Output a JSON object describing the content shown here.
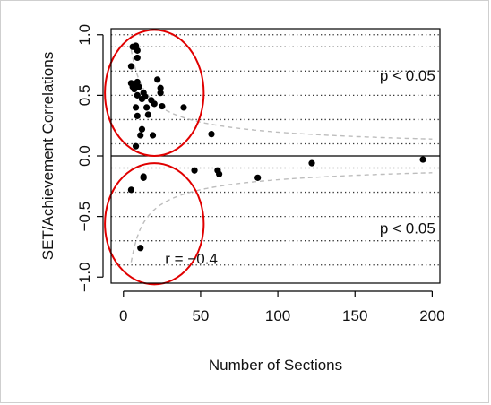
{
  "chart_data": {
    "type": "scatter",
    "xlabel": "Number of Sections",
    "ylabel": "SET/Achievement Correlations",
    "xlim": [
      -8,
      205
    ],
    "ylim": [
      -1.05,
      1.05
    ],
    "x_ticks": [
      0,
      50,
      100,
      150,
      200
    ],
    "y_ticks": [
      -1.0,
      -0.5,
      0.0,
      0.5,
      1.0
    ],
    "x_tick_labels": [
      "0",
      "50",
      "100",
      "150",
      "200"
    ],
    "y_tick_labels": [
      "−1.0",
      "−0.5",
      "0.0",
      "0.5",
      "1.0"
    ],
    "dotted_gridlines_y": [
      1.0,
      0.9,
      0.7,
      0.5,
      0.3,
      0.1,
      -0.1,
      -0.3,
      -0.5,
      -0.7,
      -0.9
    ],
    "zero_line": true,
    "significance_curve": "± critical r at p < 0.05",
    "points": [
      {
        "x": 6,
        "y": 0.9
      },
      {
        "x": 8,
        "y": 0.91
      },
      {
        "x": 9,
        "y": 0.87
      },
      {
        "x": 9,
        "y": 0.81
      },
      {
        "x": 5,
        "y": 0.74
      },
      {
        "x": 5,
        "y": 0.6
      },
      {
        "x": 6,
        "y": 0.57
      },
      {
        "x": 7,
        "y": 0.55
      },
      {
        "x": 8,
        "y": 0.58
      },
      {
        "x": 9,
        "y": 0.61
      },
      {
        "x": 10,
        "y": 0.57
      },
      {
        "x": 9,
        "y": 0.5
      },
      {
        "x": 13,
        "y": 0.52
      },
      {
        "x": 14,
        "y": 0.49
      },
      {
        "x": 12,
        "y": 0.47
      },
      {
        "x": 8,
        "y": 0.4
      },
      {
        "x": 9,
        "y": 0.33
      },
      {
        "x": 12,
        "y": 0.22
      },
      {
        "x": 11,
        "y": 0.17
      },
      {
        "x": 8,
        "y": 0.08
      },
      {
        "x": 15,
        "y": 0.4
      },
      {
        "x": 16,
        "y": 0.34
      },
      {
        "x": 18,
        "y": 0.46
      },
      {
        "x": 20,
        "y": 0.43
      },
      {
        "x": 19,
        "y": 0.17
      },
      {
        "x": 22,
        "y": 0.63
      },
      {
        "x": 24,
        "y": 0.56
      },
      {
        "x": 24,
        "y": 0.52
      },
      {
        "x": 25,
        "y": 0.41
      },
      {
        "x": 39,
        "y": 0.4
      },
      {
        "x": 57,
        "y": 0.18
      },
      {
        "x": 46,
        "y": -0.12
      },
      {
        "x": 61,
        "y": -0.12
      },
      {
        "x": 62,
        "y": -0.15
      },
      {
        "x": 87,
        "y": -0.18
      },
      {
        "x": 122,
        "y": -0.06
      },
      {
        "x": 194,
        "y": -0.03
      },
      {
        "x": 13,
        "y": -0.17
      },
      {
        "x": 13,
        "y": -0.18
      },
      {
        "x": 5,
        "y": -0.28
      },
      {
        "x": 11,
        "y": -0.76
      }
    ],
    "ellipses": [
      {
        "cx": 20,
        "cy": 0.52,
        "rx": 32,
        "ry": 0.52
      },
      {
        "cx": 20,
        "cy": -0.56,
        "rx": 32,
        "ry": 0.5
      }
    ],
    "annotations": [
      {
        "text": "p < 0.05",
        "x": 202,
        "y": 0.62,
        "anchor": "end"
      },
      {
        "text": "p < 0.05",
        "x": 202,
        "y": -0.64,
        "anchor": "end"
      },
      {
        "text": "r = −0.4",
        "x": 27,
        "y": -0.89,
        "anchor": "start"
      }
    ],
    "colors": {
      "points": "#000000",
      "ellipse": "#e00000",
      "curve": "#bdbdbd",
      "grid": "#333333"
    }
  }
}
